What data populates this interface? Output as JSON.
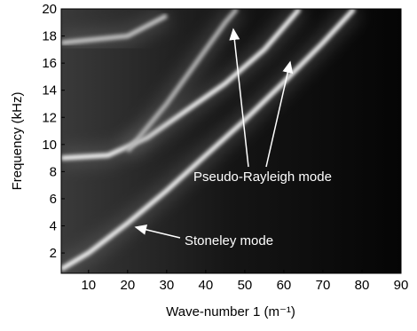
{
  "chart_data": {
    "type": "dispersion",
    "x_label": "Wave-number 1 (m⁻¹)",
    "y_label": "Frequency (kHz)",
    "xlim": [
      3,
      90
    ],
    "ylim": [
      0.5,
      20
    ],
    "xticks": [
      10,
      20,
      30,
      40,
      50,
      60,
      70,
      80,
      90
    ],
    "yticks": [
      2,
      4,
      6,
      8,
      10,
      12,
      14,
      16,
      18,
      20
    ],
    "series": [
      {
        "color": "#ffffff",
        "x": [
          3,
          10,
          20,
          30,
          40,
          50,
          60,
          70,
          78
        ],
        "values": [
          0.8,
          2,
          4.2,
          6.6,
          9.2,
          11.8,
          14.6,
          17.5,
          20
        ]
      },
      {
        "color": "#ffffff",
        "x": [
          3,
          15,
          25,
          35,
          45,
          55,
          64
        ],
        "values": [
          9,
          9.2,
          10.5,
          12.5,
          14.5,
          17,
          20
        ]
      },
      {
        "color": "#bbbbbb",
        "x": [
          20,
          30,
          40,
          45,
          48
        ],
        "values": [
          9.5,
          13,
          17,
          19,
          20
        ]
      },
      {
        "color": "#cccccc",
        "x": [
          3,
          20,
          30
        ],
        "values": [
          17.5,
          18,
          19.5
        ]
      }
    ],
    "annotations": [
      "Pseudo-Rayleigh mode",
      "Stoneley mode"
    ]
  }
}
